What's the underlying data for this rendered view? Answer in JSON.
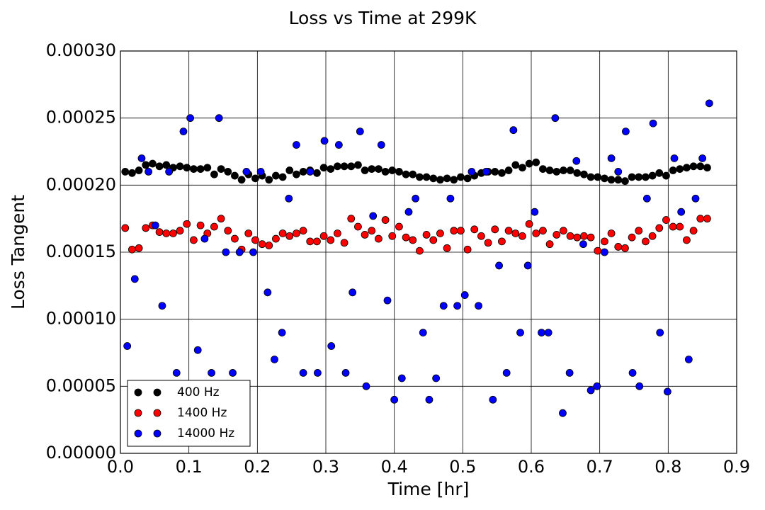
{
  "chart_data": {
    "type": "scatter",
    "title": "Loss vs Time at 299K",
    "x_label": "Time [hr]",
    "y_label": "Loss Tangent",
    "xlim": [
      0,
      0.9
    ],
    "xticks": [
      {
        "value": 0,
        "label": "0.0"
      },
      0.1,
      0.2,
      0.3,
      0.4,
      0.5,
      0.6,
      0.7,
      0.8,
      0.9
    ],
    "ylim": [
      0,
      0.0003
    ],
    "yticks": [
      {
        "value": 0,
        "label": "0.00000"
      },
      {
        "value": 5e-05,
        "label": "0.00005"
      },
      {
        "value": 0.0001,
        "label": "0.00010"
      },
      {
        "value": 0.00015,
        "label": "0.00015"
      },
      {
        "value": 0.0002,
        "label": "0.00020"
      },
      {
        "value": 0.00025,
        "label": "0.00025"
      },
      {
        "value": 0.0003,
        "label": "0.00030"
      }
    ],
    "grid": true,
    "legend": "lower left",
    "series": [
      {
        "name": "400 Hz",
        "color": "#000000",
        "x": [
          0.007,
          0.017,
          0.027,
          0.037,
          0.047,
          0.057,
          0.067,
          0.077,
          0.087,
          0.097,
          0.107,
          0.117,
          0.127,
          0.137,
          0.147,
          0.157,
          0.167,
          0.177,
          0.187,
          0.197,
          0.207,
          0.217,
          0.227,
          0.237,
          0.247,
          0.257,
          0.267,
          0.277,
          0.287,
          0.297,
          0.307,
          0.317,
          0.327,
          0.337,
          0.347,
          0.357,
          0.367,
          0.377,
          0.387,
          0.397,
          0.407,
          0.417,
          0.427,
          0.437,
          0.447,
          0.457,
          0.467,
          0.477,
          0.487,
          0.497,
          0.507,
          0.517,
          0.527,
          0.537,
          0.547,
          0.557,
          0.567,
          0.577,
          0.587,
          0.597,
          0.607,
          0.617,
          0.627,
          0.637,
          0.647,
          0.657,
          0.667,
          0.677,
          0.687,
          0.697,
          0.707,
          0.717,
          0.727,
          0.737,
          0.747,
          0.757,
          0.767,
          0.777,
          0.787,
          0.797,
          0.807,
          0.817,
          0.827,
          0.837,
          0.847,
          0.857
        ],
        "values": [
          0.00021,
          0.000209,
          0.000211,
          0.000215,
          0.000216,
          0.000214,
          0.000215,
          0.000213,
          0.000214,
          0.000213,
          0.000212,
          0.000212,
          0.000213,
          0.000208,
          0.000212,
          0.00021,
          0.000207,
          0.000204,
          0.000208,
          0.000205,
          0.000207,
          0.000204,
          0.000207,
          0.000206,
          0.000211,
          0.000208,
          0.00021,
          0.000211,
          0.000209,
          0.000213,
          0.000212,
          0.000214,
          0.000214,
          0.000214,
          0.000215,
          0.000211,
          0.000212,
          0.000212,
          0.00021,
          0.000211,
          0.00021,
          0.000208,
          0.000208,
          0.000206,
          0.000206,
          0.000205,
          0.000204,
          0.000205,
          0.000204,
          0.000206,
          0.000205,
          0.000207,
          0.000209,
          0.00021,
          0.00021,
          0.000209,
          0.000211,
          0.000215,
          0.000213,
          0.000216,
          0.000217,
          0.000212,
          0.000211,
          0.00021,
          0.000211,
          0.000211,
          0.000209,
          0.000208,
          0.000206,
          0.000206,
          0.000205,
          0.000204,
          0.000204,
          0.000203,
          0.000206,
          0.000206,
          0.000206,
          0.000207,
          0.000209,
          0.000207,
          0.000211,
          0.000212,
          0.000213,
          0.000214,
          0.000214,
          0.000213
        ]
      },
      {
        "name": "1400 Hz",
        "color": "#ff0000",
        "x": [
          0.007,
          0.017,
          0.027,
          0.037,
          0.047,
          0.057,
          0.067,
          0.077,
          0.087,
          0.097,
          0.107,
          0.117,
          0.127,
          0.137,
          0.147,
          0.157,
          0.167,
          0.177,
          0.187,
          0.197,
          0.207,
          0.217,
          0.227,
          0.237,
          0.247,
          0.257,
          0.267,
          0.277,
          0.287,
          0.297,
          0.307,
          0.317,
          0.327,
          0.337,
          0.347,
          0.357,
          0.367,
          0.377,
          0.387,
          0.397,
          0.407,
          0.417,
          0.427,
          0.437,
          0.447,
          0.457,
          0.467,
          0.477,
          0.487,
          0.497,
          0.507,
          0.517,
          0.527,
          0.537,
          0.547,
          0.557,
          0.567,
          0.577,
          0.587,
          0.597,
          0.607,
          0.617,
          0.627,
          0.637,
          0.647,
          0.657,
          0.667,
          0.677,
          0.687,
          0.697,
          0.707,
          0.717,
          0.727,
          0.737,
          0.747,
          0.757,
          0.767,
          0.777,
          0.787,
          0.797,
          0.807,
          0.817,
          0.827,
          0.837,
          0.847,
          0.857
        ],
        "values": [
          0.000168,
          0.000152,
          0.000153,
          0.000168,
          0.00017,
          0.000165,
          0.000164,
          0.000164,
          0.000166,
          0.000171,
          0.000159,
          0.00017,
          0.000164,
          0.000169,
          0.000175,
          0.000166,
          0.00016,
          0.000152,
          0.000164,
          0.000159,
          0.000156,
          0.000155,
          0.00016,
          0.000164,
          0.000162,
          0.000164,
          0.000166,
          0.000158,
          0.000158,
          0.000162,
          0.000159,
          0.000164,
          0.000157,
          0.000175,
          0.000169,
          0.000163,
          0.000166,
          0.00016,
          0.000174,
          0.000162,
          0.000169,
          0.000161,
          0.000159,
          0.000151,
          0.000163,
          0.000159,
          0.000164,
          0.000153,
          0.000166,
          0.000166,
          0.000152,
          0.000167,
          0.000162,
          0.000157,
          0.000167,
          0.000158,
          0.000166,
          0.000164,
          0.000162,
          0.000171,
          0.000164,
          0.000166,
          0.000156,
          0.000163,
          0.000166,
          0.000162,
          0.000161,
          0.000162,
          0.000161,
          0.000151,
          0.000158,
          0.000164,
          0.000154,
          0.000153,
          0.000161,
          0.000166,
          0.000158,
          0.000162,
          0.000168,
          0.000174,
          0.000169,
          0.000169,
          0.000159,
          0.000166,
          0.000175,
          0.000175
        ]
      },
      {
        "name": "14000 Hz",
        "color": "#0000ff",
        "x": [
          0.01,
          0.021,
          0.031,
          0.041,
          0.051,
          0.061,
          0.071,
          0.082,
          0.092,
          0.102,
          0.113,
          0.123,
          0.133,
          0.144,
          0.154,
          0.164,
          0.174,
          0.184,
          0.194,
          0.205,
          0.215,
          0.225,
          0.236,
          0.246,
          0.257,
          0.267,
          0.277,
          0.288,
          0.298,
          0.308,
          0.319,
          0.329,
          0.339,
          0.35,
          0.359,
          0.369,
          0.381,
          0.39,
          0.4,
          0.411,
          0.421,
          0.431,
          0.442,
          0.451,
          0.461,
          0.472,
          0.482,
          0.492,
          0.503,
          0.513,
          0.523,
          0.534,
          0.544,
          0.553,
          0.564,
          0.574,
          0.584,
          0.595,
          0.605,
          0.615,
          0.625,
          0.635,
          0.646,
          0.656,
          0.666,
          0.676,
          0.687,
          0.696,
          0.707,
          0.717,
          0.727,
          0.738,
          0.748,
          0.758,
          0.769,
          0.778,
          0.788,
          0.799,
          0.809,
          0.819,
          0.83,
          0.84,
          0.85,
          0.86
        ],
        "values": [
          8e-05,
          0.00013,
          0.00022,
          0.00021,
          0.00017,
          0.00011,
          0.00021,
          6e-05,
          0.00024,
          0.00025,
          7.7e-05,
          0.00016,
          6e-05,
          0.00025,
          0.00015,
          6e-05,
          0.00015,
          0.00021,
          0.00015,
          0.00021,
          0.00012,
          7e-05,
          9e-05,
          0.00019,
          0.00023,
          6e-05,
          0.00021,
          6e-05,
          0.000233,
          8e-05,
          0.00023,
          6e-05,
          0.00012,
          0.00024,
          5e-05,
          0.000177,
          0.00023,
          0.000114,
          4e-05,
          5.6e-05,
          0.00018,
          0.00019,
          9e-05,
          4e-05,
          5.6e-05,
          0.00011,
          0.00019,
          0.00011,
          0.000118,
          0.00021,
          0.00011,
          0.00021,
          4e-05,
          0.00014,
          6e-05,
          0.000241,
          9e-05,
          0.00014,
          0.00018,
          9e-05,
          9e-05,
          0.00025,
          3e-05,
          6e-05,
          0.000218,
          0.000156,
          4.7e-05,
          5e-05,
          0.00015,
          0.00022,
          0.00021,
          0.00024,
          6e-05,
          5e-05,
          0.00019,
          0.000246,
          9e-05,
          4.6e-05,
          0.00022,
          0.00018,
          7e-05,
          0.00019,
          0.00022,
          0.000261
        ]
      }
    ]
  }
}
